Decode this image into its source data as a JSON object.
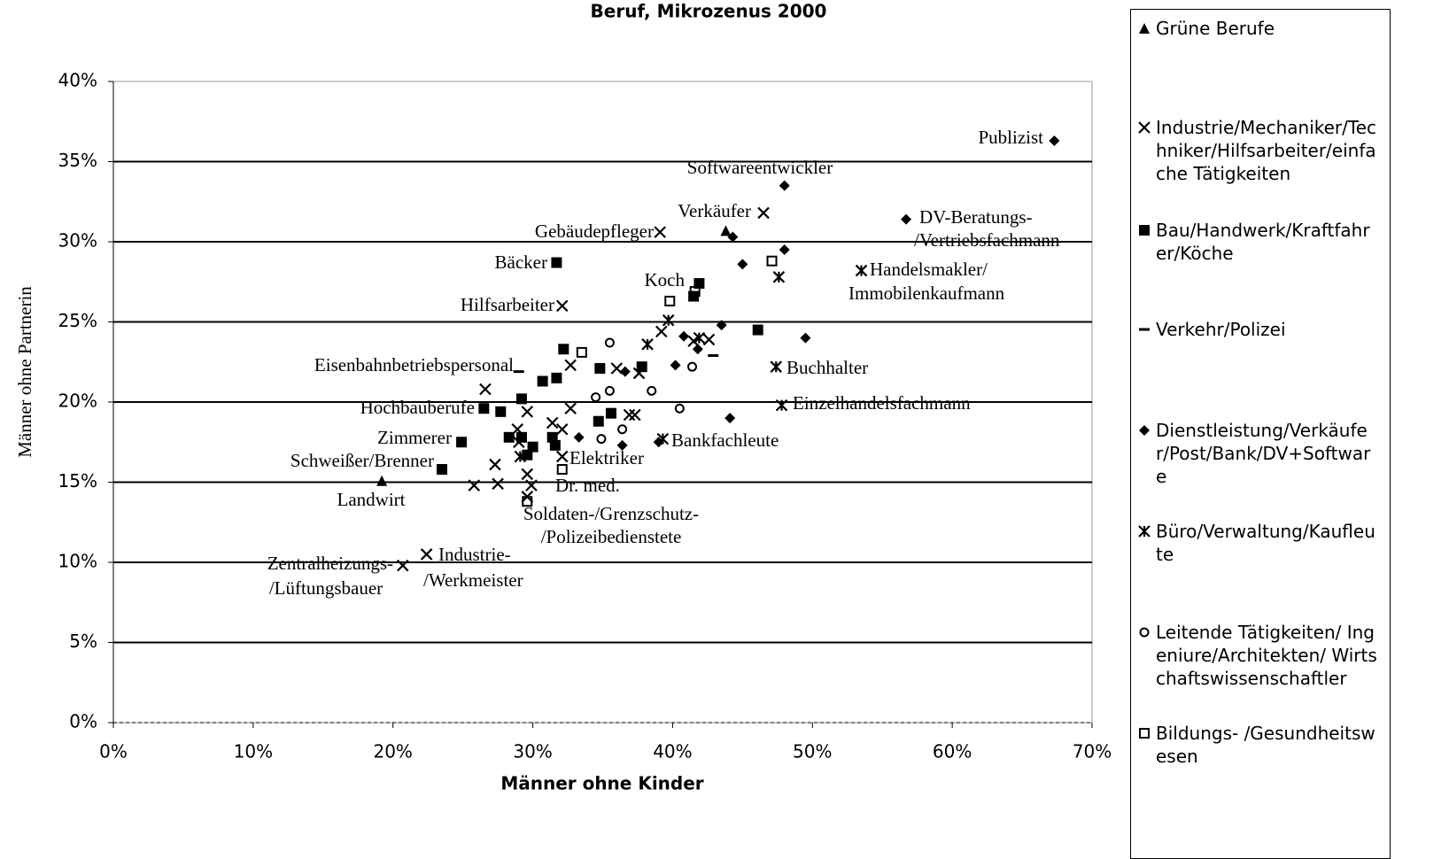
{
  "chart_data": {
    "type": "scatter",
    "title": "Beruf, Mikrozenus 2000",
    "xlabel": "Männer ohne Kinder",
    "ylabel": "Männer ohne Partnerin",
    "xlim": [
      0,
      70
    ],
    "ylim": [
      0,
      40
    ],
    "xticks": [
      {
        "value": 0,
        "label": "0%"
      },
      {
        "value": 10,
        "label": "10%"
      },
      {
        "value": 20,
        "label": "20%"
      },
      {
        "value": 30,
        "label": "30%"
      },
      {
        "value": 40,
        "label": "40%"
      },
      {
        "value": 50,
        "label": "50%"
      },
      {
        "value": 60,
        "label": "60%"
      },
      {
        "value": 70,
        "label": "70%"
      }
    ],
    "yticks": [
      {
        "value": 0,
        "label": "0%"
      },
      {
        "value": 5,
        "label": "5%"
      },
      {
        "value": 10,
        "label": "10%"
      },
      {
        "value": 15,
        "label": "15%"
      },
      {
        "value": 20,
        "label": "20%"
      },
      {
        "value": 25,
        "label": "25%"
      },
      {
        "value": 30,
        "label": "30%"
      },
      {
        "value": 35,
        "label": "35%"
      },
      {
        "value": 40,
        "label": "40%"
      }
    ],
    "grid": true,
    "legend": "right",
    "series": [
      {
        "name": "Grüne Berufe",
        "marker": "triangle",
        "color": "#000000",
        "x": [
          19.2,
          43.8
        ],
        "values": [
          15.1,
          30.7
        ]
      },
      {
        "name": "Industrie/Mechaniker/Techniker/Hilfsarbeiter/einfache Tätigkeiten",
        "marker": "cross",
        "color": "#000000",
        "x": [
          22.4,
          20.7,
          26.6,
          27.3,
          25.8,
          27.5,
          28.9,
          29.6,
          29.0,
          29.6,
          29.9,
          29.6,
          31.4,
          32.1,
          32.1,
          32.7,
          32.7,
          32.1,
          36.0,
          36.9,
          37.3,
          37.6,
          39.2,
          39.1,
          46.5,
          41.5,
          42.6
        ],
        "values": [
          10.5,
          9.8,
          20.8,
          16.1,
          14.8,
          14.9,
          18.3,
          19.4,
          17.5,
          15.5,
          14.8,
          14.1,
          18.7,
          18.3,
          16.6,
          19.6,
          22.3,
          26.0,
          22.1,
          19.2,
          19.2,
          21.8,
          24.4,
          30.6,
          31.8,
          23.8,
          23.9
        ]
      },
      {
        "name": "Bau/Handwerk/Kraftfahrer/Köche",
        "marker": "square",
        "color": "#000000",
        "x": [
          31.7,
          41.9,
          41.5,
          46.1,
          32.2,
          30.7,
          31.7,
          34.8,
          37.8,
          29.2,
          26.5,
          27.7,
          35.6,
          34.7,
          24.9,
          28.3,
          29.2,
          31.4,
          31.6,
          30.0,
          29.6,
          23.5
        ],
        "values": [
          28.7,
          27.4,
          26.6,
          24.5,
          23.3,
          21.3,
          21.5,
          22.1,
          22.2,
          20.2,
          19.6,
          19.4,
          19.3,
          18.8,
          17.5,
          17.8,
          17.8,
          17.8,
          17.3,
          17.2,
          16.7,
          15.8
        ]
      },
      {
        "name": "Verkehr/Polizei",
        "marker": "dash",
        "color": "#000000",
        "x": [
          29.0,
          42.9
        ],
        "values": [
          21.9,
          22.9
        ]
      },
      {
        "name": "Dienstleistung/Verkäufer/Post/Bank/DV+Software",
        "marker": "diamond",
        "color": "#000000",
        "x": [
          67.3,
          48.0,
          56.7,
          44.3,
          48.0,
          45.0,
          49.5,
          43.5,
          40.8,
          41.8,
          40.2,
          36.6,
          44.1,
          33.3,
          36.4,
          39.0
        ],
        "values": [
          36.3,
          33.5,
          31.4,
          30.3,
          29.5,
          28.6,
          24.0,
          24.8,
          24.1,
          23.3,
          22.3,
          21.9,
          19.0,
          17.8,
          17.3,
          17.5
        ]
      },
      {
        "name": "Büro/Verwaltung/Kaufleute",
        "marker": "asterisk",
        "color": "#000000",
        "x": [
          53.5,
          47.6,
          39.7,
          38.2,
          41.9,
          47.4,
          47.8,
          39.3,
          29.1
        ],
        "values": [
          28.2,
          27.8,
          25.1,
          23.6,
          24.0,
          22.2,
          19.8,
          17.7,
          16.6
        ]
      },
      {
        "name": "Leitende Tätigkeiten/ Ingeniure/Architekten/ Wirtschaftswissenschaftler",
        "marker": "circle",
        "color": "#000000",
        "x": [
          35.5,
          41.4,
          35.5,
          38.5,
          34.5,
          40.5,
          36.4,
          34.9
        ],
        "values": [
          23.7,
          22.2,
          20.7,
          20.7,
          20.3,
          19.6,
          18.3,
          17.7
        ]
      },
      {
        "name": "Bildungs- /Gesundheitswesen",
        "marker": "open-square",
        "color": "#000000",
        "x": [
          47.1,
          39.8,
          41.6,
          33.5,
          32.1,
          29.6
        ],
        "values": [
          28.8,
          26.3,
          26.9,
          23.1,
          15.8,
          13.8
        ]
      }
    ],
    "annotations": [
      "Publizist",
      "Softwareentwickler",
      "Verkäufer",
      "Gebäudepfleger",
      "DV-Beratungs-",
      "/Vertriebsfachmann",
      "Bäcker",
      "Handelsmakler/",
      "Immobilenkaufmann",
      "Koch",
      "Hilfsarbeiter",
      "Eisenbahnbetriebspersonal",
      "Buchhalter",
      "Hochbauberufe",
      "Einzelhandelsfachmann",
      "Zimmerer",
      "Bankfachleute",
      "Elektriker",
      "Schweißer/Brenner",
      "Dr. med.",
      "Landwirt",
      "Soldaten-/Grenzschutz-",
      "/Polizeibedienstete",
      "Industrie-",
      "/Werkmeister",
      "Zentralheizungs-",
      "/Lüftungsbauer"
    ]
  }
}
